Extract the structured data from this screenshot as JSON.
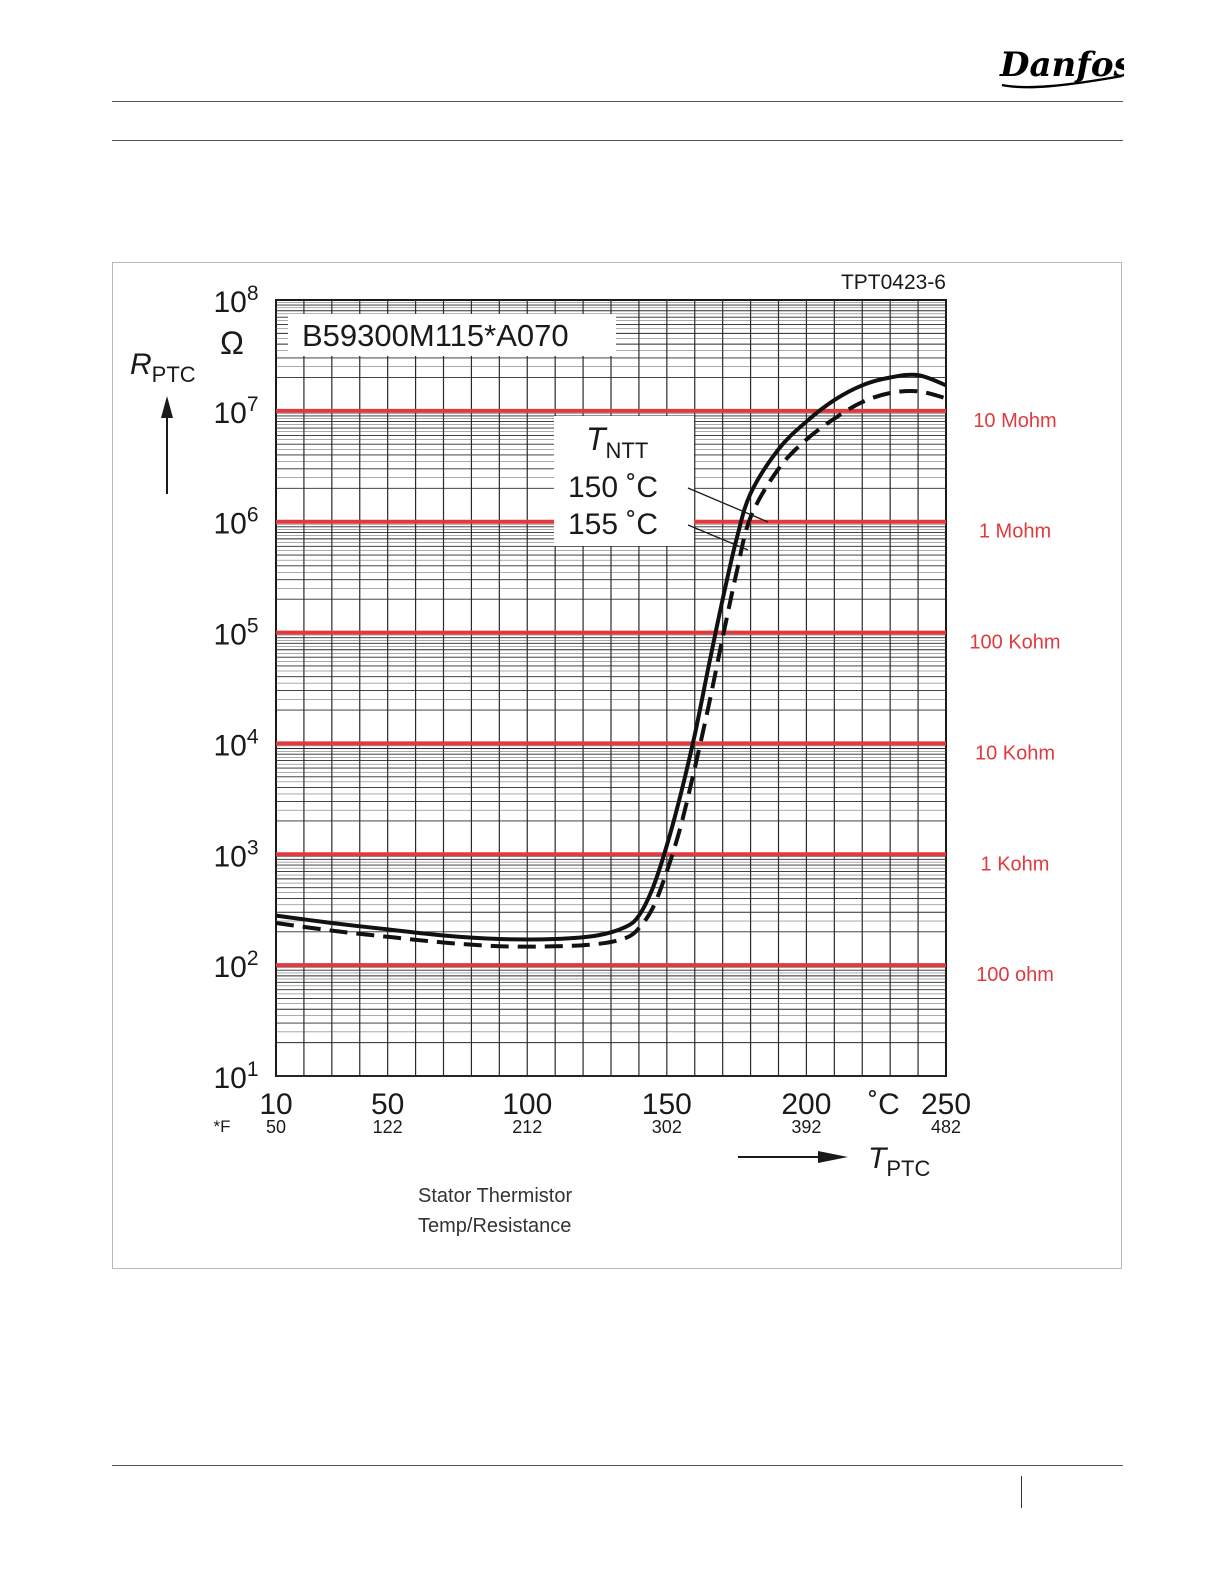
{
  "brand": {
    "logo_text": "Danfoss",
    "color": "#000000"
  },
  "chart_data": {
    "type": "line",
    "drawing_code": "TPT0423-6",
    "part_number": "B59300M115*A070",
    "y_scale": "log",
    "ylim": [
      10,
      100000000
    ],
    "xlim": [
      10,
      250
    ],
    "y_ticks": [
      {
        "value": 10,
        "mantissa": "10",
        "exp": "1"
      },
      {
        "value": 100,
        "mantissa": "10",
        "exp": "2"
      },
      {
        "value": 1000,
        "mantissa": "10",
        "exp": "3"
      },
      {
        "value": 10000,
        "mantissa": "10",
        "exp": "4"
      },
      {
        "value": 100000,
        "mantissa": "10",
        "exp": "5"
      },
      {
        "value": 1000000,
        "mantissa": "10",
        "exp": "6"
      },
      {
        "value": 10000000,
        "mantissa": "10",
        "exp": "7"
      },
      {
        "value": 100000000,
        "mantissa": "10",
        "exp": "8"
      }
    ],
    "y_unit": "Ω",
    "y_label": {
      "main": "R",
      "sub": "PTC"
    },
    "x_ticks": [
      {
        "c": 10,
        "label": "10",
        "f": "50"
      },
      {
        "c": 50,
        "label": "50",
        "f": "122"
      },
      {
        "c": 100,
        "label": "100",
        "f": "212"
      },
      {
        "c": 150,
        "label": "150",
        "f": "302"
      },
      {
        "c": 200,
        "label": "200",
        "f": "392"
      },
      {
        "c": 250,
        "label": "250",
        "f": "482"
      }
    ],
    "x_unit_c": "˚C",
    "x_unit_f": "*F",
    "x_label": {
      "main": "T",
      "sub": "PTC"
    },
    "legend": {
      "title": {
        "main": "T",
        "sub": "NTT"
      },
      "entries": [
        "150 ˚C",
        "155 ˚C"
      ]
    },
    "reference_lines": [
      {
        "value": 10000000,
        "label": "10 Mohm"
      },
      {
        "value": 1000000,
        "label": "1 Mohm"
      },
      {
        "value": 100000,
        "label": "100 Kohm"
      },
      {
        "value": 10000,
        "label": "10 Kohm"
      },
      {
        "value": 1000,
        "label": "1 Kohm"
      },
      {
        "value": 100,
        "label": "100 ohm"
      }
    ],
    "reference_color": "#e03a3e",
    "series": [
      {
        "name": "150 ˚C",
        "style": "solid",
        "points": [
          [
            10,
            280
          ],
          [
            30,
            240
          ],
          [
            50,
            210
          ],
          [
            70,
            185
          ],
          [
            90,
            172
          ],
          [
            110,
            172
          ],
          [
            125,
            185
          ],
          [
            135,
            220
          ],
          [
            140,
            280
          ],
          [
            145,
            500
          ],
          [
            150,
            1200
          ],
          [
            155,
            3500
          ],
          [
            160,
            12000
          ],
          [
            165,
            50000
          ],
          [
            170,
            200000
          ],
          [
            175,
            700000
          ],
          [
            180,
            1800000
          ],
          [
            190,
            4500000
          ],
          [
            200,
            8000000
          ],
          [
            210,
            12500000
          ],
          [
            220,
            17000000
          ],
          [
            230,
            20000000
          ],
          [
            240,
            21000000
          ],
          [
            250,
            17000000
          ]
        ]
      },
      {
        "name": "155 ˚C",
        "style": "dashed",
        "points": [
          [
            10,
            240
          ],
          [
            30,
            205
          ],
          [
            50,
            180
          ],
          [
            70,
            160
          ],
          [
            90,
            148
          ],
          [
            110,
            148
          ],
          [
            125,
            155
          ],
          [
            135,
            175
          ],
          [
            140,
            215
          ],
          [
            145,
            330
          ],
          [
            150,
            700
          ],
          [
            155,
            1800
          ],
          [
            160,
            6000
          ],
          [
            165,
            22000
          ],
          [
            170,
            90000
          ],
          [
            175,
            350000
          ],
          [
            180,
            1100000
          ],
          [
            190,
            3000000
          ],
          [
            200,
            5500000
          ],
          [
            210,
            8500000
          ],
          [
            220,
            12000000
          ],
          [
            230,
            14500000
          ],
          [
            240,
            15000000
          ],
          [
            250,
            13000000
          ]
        ]
      }
    ],
    "caption": [
      "Stator Thermistor",
      "Temp/Resistance"
    ]
  }
}
